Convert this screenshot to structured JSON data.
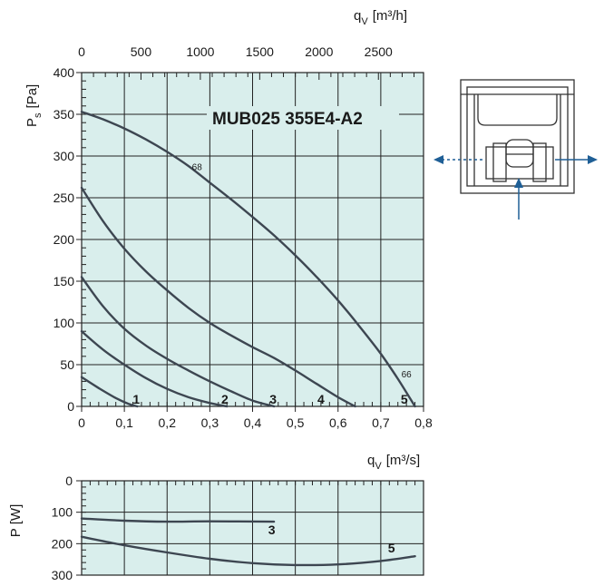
{
  "colors": {
    "plot_bg": "#d9eeec",
    "curve": "#3d4651",
    "grid": "#222222",
    "arrow": "#1f5f96",
    "diagram_line": "#333333"
  },
  "chart_data": [
    {
      "type": "line",
      "title": "MUB025 355E4-A2",
      "xlabel_unit": "[m³/s]",
      "xlabel_symbol": "q",
      "xlabel_sub": "V",
      "ylabel_symbol": "P",
      "ylabel_sub": "s",
      "ylabel_unit": "[Pa]",
      "xlim": [
        0,
        0.8
      ],
      "ylim": [
        0,
        400
      ],
      "x_ticks": [
        "0",
        "0,1",
        "0,2",
        "0,3",
        "0,4",
        "0,5",
        "0,6",
        "0,7",
        "0,8"
      ],
      "y_ticks": [
        "0",
        "50",
        "100",
        "150",
        "200",
        "250",
        "300",
        "350",
        "400"
      ],
      "secondary_x_axis": {
        "label_symbol": "q",
        "label_sub": "V",
        "unit": "[m³/h]",
        "ticks": [
          "0",
          "500",
          "1000",
          "1500",
          "2000",
          "2500"
        ],
        "tick_values": [
          0,
          500,
          1000,
          1500,
          2000,
          2500
        ],
        "range_m3h": [
          0,
          2880
        ]
      },
      "grid": true,
      "series": [
        {
          "name": "1",
          "x": [
            0,
            0.04,
            0.08,
            0.11,
            0.13
          ],
          "y": [
            35,
            22,
            10,
            3,
            0
          ]
        },
        {
          "name": "2",
          "x": [
            0,
            0.05,
            0.1,
            0.15,
            0.2,
            0.25,
            0.3,
            0.34
          ],
          "y": [
            90,
            68,
            50,
            34,
            21,
            11,
            4,
            0
          ]
        },
        {
          "name": "3",
          "x": [
            0,
            0.05,
            0.1,
            0.15,
            0.2,
            0.25,
            0.3,
            0.35,
            0.4,
            0.45
          ],
          "y": [
            155,
            120,
            93,
            73,
            57,
            43,
            30,
            18,
            7,
            0
          ]
        },
        {
          "name": "4",
          "x": [
            0,
            0.05,
            0.1,
            0.15,
            0.2,
            0.25,
            0.3,
            0.35,
            0.4,
            0.45,
            0.5,
            0.55,
            0.6,
            0.64
          ],
          "y": [
            262,
            222,
            189,
            162,
            139,
            118,
            100,
            85,
            71,
            58,
            43,
            27,
            11,
            0
          ]
        },
        {
          "name": "5",
          "x": [
            0,
            0.05,
            0.1,
            0.15,
            0.2,
            0.25,
            0.3,
            0.35,
            0.4,
            0.45,
            0.5,
            0.55,
            0.6,
            0.65,
            0.7,
            0.74,
            0.78
          ],
          "y": [
            353,
            344,
            333,
            320,
            305,
            288,
            268,
            248,
            227,
            205,
            181,
            155,
            127,
            96,
            63,
            33,
            0
          ]
        }
      ],
      "curve_labels_inside": [
        {
          "text": "68",
          "x": 0.27,
          "y": 283
        },
        {
          "text": "66",
          "x": 0.76,
          "y": 35
        }
      ],
      "series_end_labels": [
        {
          "text": "1",
          "x": 0.128,
          "y": 3
        },
        {
          "text": "2",
          "x": 0.335,
          "y": 3
        },
        {
          "text": "3",
          "x": 0.448,
          "y": 3
        },
        {
          "text": "4",
          "x": 0.56,
          "y": 3
        },
        {
          "text": "5",
          "x": 0.755,
          "y": 3
        }
      ]
    },
    {
      "type": "line",
      "ylabel_symbol": "P",
      "ylabel_unit": "[W]",
      "ylim": [
        0,
        300
      ],
      "y_inverted": true,
      "xlim": [
        0,
        0.8
      ],
      "y_ticks": [
        "0",
        "100",
        "200",
        "300"
      ],
      "grid": true,
      "series": [
        {
          "name": "3",
          "x": [
            0,
            0.1,
            0.2,
            0.3,
            0.45
          ],
          "y": [
            120,
            127,
            130,
            129,
            130
          ]
        },
        {
          "name": "5",
          "x": [
            0,
            0.1,
            0.2,
            0.3,
            0.4,
            0.5,
            0.6,
            0.7,
            0.78
          ],
          "y": [
            178,
            205,
            228,
            248,
            262,
            268,
            266,
            255,
            240
          ]
        }
      ],
      "series_end_labels": [
        {
          "text": "3",
          "x": 0.445,
          "y": 170
        },
        {
          "text": "5",
          "x": 0.725,
          "y": 228
        }
      ]
    }
  ]
}
